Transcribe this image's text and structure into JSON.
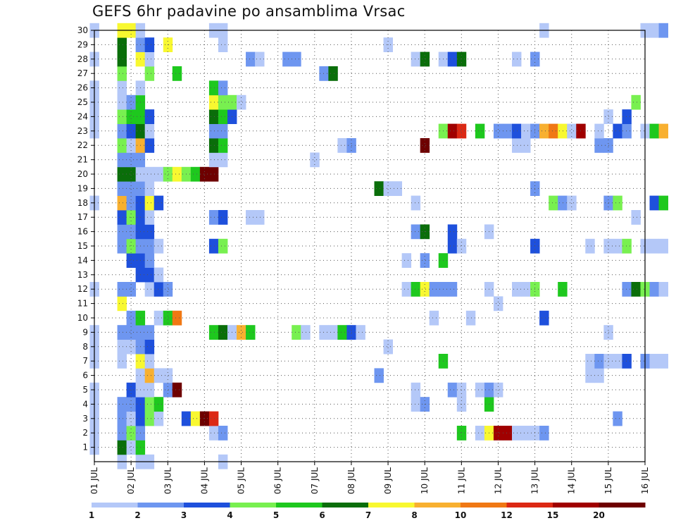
{
  "title": "GEFS 6hr padavine po ansamblima Vrsac",
  "chart_data": {
    "type": "heatmap",
    "title": "GEFS 6hr padavine po ansamblima Vrsac",
    "x_axis": {
      "unit": "day of JUL (6-hourly steps)",
      "range": [
        1,
        16
      ],
      "tick_labels": [
        "01 JUL",
        "02 JUL",
        "03 JUL",
        "04 JUL",
        "05 JUL",
        "06 JUL",
        "07 JUL",
        "08 JUL",
        "09 JUL",
        "10 JUL",
        "11 JUL",
        "12 JUL",
        "13 JUL",
        "14 JUL",
        "15 JUL",
        "16 JUL"
      ]
    },
    "y_axis": {
      "unit": "ensemble member",
      "range": [
        0,
        30
      ],
      "tick_labels": [
        "1",
        "2",
        "3",
        "4",
        "5",
        "6",
        "7",
        "8",
        "9",
        "10",
        "11",
        "12",
        "13",
        "14",
        "15",
        "16",
        "17",
        "18",
        "19",
        "20",
        "21",
        "22",
        "23",
        "24",
        "25",
        "26",
        "27",
        "28",
        "29",
        "30"
      ]
    },
    "grid": "dotted",
    "colorbar": {
      "labels": [
        "1",
        "2",
        "3",
        "4",
        "5",
        "6",
        "7",
        "8",
        "10",
        "12",
        "15",
        "20"
      ],
      "colors": [
        "#b4c8f8",
        "#6e96f0",
        "#1e50dc",
        "#78f050",
        "#1ec81e",
        "#0a6e0a",
        "#f8f830",
        "#f8b030",
        "#f07814",
        "#dc2814",
        "#a00000",
        "#6e0000"
      ]
    },
    "cells": [
      [
        1.0,
        1,
        1
      ],
      [
        1.0,
        2,
        1
      ],
      [
        1.0,
        3,
        1
      ],
      [
        1.0,
        4,
        1
      ],
      [
        1.0,
        5,
        1
      ],
      [
        1.0,
        7,
        1
      ],
      [
        1.0,
        8,
        1
      ],
      [
        1.0,
        9,
        1
      ],
      [
        1.0,
        12,
        1
      ],
      [
        1.0,
        18,
        1
      ],
      [
        1.0,
        23,
        1
      ],
      [
        1.0,
        24,
        1
      ],
      [
        1.0,
        25,
        1
      ],
      [
        1.0,
        26,
        1
      ],
      [
        1.0,
        28,
        1
      ],
      [
        1.0,
        30,
        1
      ],
      [
        1.75,
        0,
        1
      ],
      [
        1.75,
        1,
        6
      ],
      [
        1.75,
        2,
        2
      ],
      [
        1.75,
        3,
        2
      ],
      [
        1.75,
        4,
        2
      ],
      [
        1.75,
        7,
        1
      ],
      [
        1.75,
        8,
        1
      ],
      [
        1.75,
        9,
        2
      ],
      [
        1.75,
        11,
        7
      ],
      [
        1.75,
        12,
        2
      ],
      [
        1.75,
        15,
        2
      ],
      [
        1.75,
        16,
        2
      ],
      [
        1.75,
        17,
        3
      ],
      [
        1.75,
        18,
        8
      ],
      [
        1.75,
        19,
        2
      ],
      [
        1.75,
        20,
        6
      ],
      [
        1.75,
        21,
        2
      ],
      [
        1.75,
        22,
        4
      ],
      [
        1.75,
        23,
        2
      ],
      [
        1.75,
        24,
        4
      ],
      [
        1.75,
        25,
        1
      ],
      [
        1.75,
        26,
        1
      ],
      [
        1.75,
        27,
        4
      ],
      [
        1.75,
        28,
        6
      ],
      [
        1.75,
        29,
        6
      ],
      [
        1.75,
        30,
        7
      ],
      [
        2.0,
        1,
        1
      ],
      [
        2.0,
        2,
        4
      ],
      [
        2.0,
        3,
        1
      ],
      [
        2.0,
        4,
        2
      ],
      [
        2.0,
        5,
        3
      ],
      [
        2.0,
        8,
        1
      ],
      [
        2.0,
        9,
        2
      ],
      [
        2.0,
        10,
        2
      ],
      [
        2.0,
        12,
        2
      ],
      [
        2.0,
        14,
        3
      ],
      [
        2.0,
        15,
        4
      ],
      [
        2.0,
        16,
        2
      ],
      [
        2.0,
        17,
        4
      ],
      [
        2.0,
        18,
        2
      ],
      [
        2.0,
        19,
        2
      ],
      [
        2.0,
        20,
        6
      ],
      [
        2.0,
        21,
        2
      ],
      [
        2.0,
        22,
        1
      ],
      [
        2.0,
        23,
        3
      ],
      [
        2.0,
        24,
        5
      ],
      [
        2.0,
        25,
        2
      ],
      [
        2.0,
        30,
        7
      ],
      [
        2.25,
        0,
        1
      ],
      [
        2.25,
        1,
        5
      ],
      [
        2.25,
        2,
        2
      ],
      [
        2.25,
        3,
        3
      ],
      [
        2.25,
        4,
        3
      ],
      [
        2.25,
        5,
        1
      ],
      [
        2.25,
        6,
        1
      ],
      [
        2.25,
        7,
        7
      ],
      [
        2.25,
        8,
        2
      ],
      [
        2.25,
        9,
        2
      ],
      [
        2.25,
        10,
        5
      ],
      [
        2.25,
        13,
        3
      ],
      [
        2.25,
        14,
        3
      ],
      [
        2.25,
        15,
        2
      ],
      [
        2.25,
        16,
        3
      ],
      [
        2.25,
        17,
        3
      ],
      [
        2.25,
        18,
        3
      ],
      [
        2.25,
        19,
        2
      ],
      [
        2.25,
        20,
        1
      ],
      [
        2.25,
        21,
        2
      ],
      [
        2.25,
        22,
        8
      ],
      [
        2.25,
        23,
        6
      ],
      [
        2.25,
        24,
        5
      ],
      [
        2.25,
        25,
        5
      ],
      [
        2.25,
        26,
        1
      ],
      [
        2.25,
        28,
        7
      ],
      [
        2.25,
        29,
        2
      ],
      [
        2.25,
        30,
        1
      ],
      [
        2.5,
        0,
        1
      ],
      [
        2.5,
        3,
        4
      ],
      [
        2.5,
        4,
        4
      ],
      [
        2.5,
        5,
        1
      ],
      [
        2.5,
        6,
        8
      ],
      [
        2.5,
        7,
        1
      ],
      [
        2.5,
        8,
        3
      ],
      [
        2.5,
        9,
        2
      ],
      [
        2.5,
        12,
        1
      ],
      [
        2.5,
        13,
        3
      ],
      [
        2.5,
        14,
        2
      ],
      [
        2.5,
        15,
        2
      ],
      [
        2.5,
        16,
        3
      ],
      [
        2.5,
        17,
        1
      ],
      [
        2.5,
        18,
        7
      ],
      [
        2.5,
        19,
        1
      ],
      [
        2.5,
        20,
        1
      ],
      [
        2.5,
        22,
        3
      ],
      [
        2.5,
        23,
        1
      ],
      [
        2.5,
        24,
        3
      ],
      [
        2.5,
        27,
        4
      ],
      [
        2.5,
        28,
        1
      ],
      [
        2.5,
        29,
        3
      ],
      [
        2.75,
        3,
        1
      ],
      [
        2.75,
        4,
        5
      ],
      [
        2.75,
        6,
        1
      ],
      [
        2.75,
        10,
        1
      ],
      [
        2.75,
        12,
        3
      ],
      [
        2.75,
        13,
        1
      ],
      [
        2.75,
        15,
        1
      ],
      [
        2.75,
        18,
        3
      ],
      [
        2.75,
        20,
        1
      ],
      [
        3.0,
        5,
        2
      ],
      [
        3.0,
        6,
        1
      ],
      [
        3.0,
        10,
        5
      ],
      [
        3.0,
        12,
        2
      ],
      [
        3.0,
        20,
        4
      ],
      [
        3.0,
        29,
        7
      ],
      [
        3.25,
        5,
        12
      ],
      [
        3.25,
        10,
        9
      ],
      [
        3.25,
        20,
        7
      ],
      [
        3.25,
        27,
        5
      ],
      [
        3.5,
        3,
        3
      ],
      [
        3.5,
        20,
        4
      ],
      [
        3.75,
        3,
        7
      ],
      [
        3.75,
        20,
        5
      ],
      [
        4.0,
        3,
        12
      ],
      [
        4.0,
        20,
        12
      ],
      [
        4.25,
        2,
        1
      ],
      [
        4.25,
        3,
        10
      ],
      [
        4.25,
        9,
        5
      ],
      [
        4.25,
        15,
        3
      ],
      [
        4.25,
        17,
        2
      ],
      [
        4.25,
        20,
        12
      ],
      [
        4.25,
        21,
        1
      ],
      [
        4.25,
        22,
        6
      ],
      [
        4.25,
        23,
        2
      ],
      [
        4.25,
        24,
        6
      ],
      [
        4.25,
        25,
        7
      ],
      [
        4.25,
        26,
        5
      ],
      [
        4.25,
        30,
        1
      ],
      [
        4.5,
        0,
        1
      ],
      [
        4.5,
        2,
        2
      ],
      [
        4.5,
        9,
        6
      ],
      [
        4.5,
        15,
        4
      ],
      [
        4.5,
        17,
        3
      ],
      [
        4.5,
        21,
        1
      ],
      [
        4.5,
        22,
        5
      ],
      [
        4.5,
        23,
        2
      ],
      [
        4.5,
        24,
        5
      ],
      [
        4.5,
        25,
        4
      ],
      [
        4.5,
        26,
        2
      ],
      [
        4.5,
        29,
        1
      ],
      [
        4.5,
        30,
        1
      ],
      [
        4.75,
        9,
        1
      ],
      [
        4.75,
        24,
        3
      ],
      [
        4.75,
        25,
        4
      ],
      [
        5.0,
        9,
        8
      ],
      [
        5.0,
        25,
        1
      ],
      [
        5.25,
        9,
        5
      ],
      [
        5.25,
        17,
        1
      ],
      [
        5.25,
        28,
        2
      ],
      [
        5.5,
        17,
        1
      ],
      [
        5.5,
        28,
        1
      ],
      [
        6.25,
        28,
        2
      ],
      [
        6.5,
        9,
        4
      ],
      [
        6.5,
        28,
        2
      ],
      [
        6.75,
        9,
        1
      ],
      [
        7.0,
        21,
        1
      ],
      [
        7.25,
        9,
        1
      ],
      [
        7.25,
        27,
        2
      ],
      [
        7.5,
        9,
        1
      ],
      [
        7.5,
        27,
        6
      ],
      [
        7.75,
        9,
        5
      ],
      [
        7.75,
        22,
        1
      ],
      [
        8.0,
        9,
        3
      ],
      [
        8.0,
        22,
        2
      ],
      [
        8.25,
        9,
        1
      ],
      [
        8.75,
        6,
        2
      ],
      [
        8.75,
        19,
        6
      ],
      [
        9.0,
        8,
        1
      ],
      [
        9.0,
        19,
        1
      ],
      [
        9.0,
        29,
        1
      ],
      [
        9.25,
        19,
        1
      ],
      [
        9.5,
        12,
        1
      ],
      [
        9.5,
        14,
        1
      ],
      [
        9.75,
        4,
        1
      ],
      [
        9.75,
        5,
        1
      ],
      [
        9.75,
        12,
        5
      ],
      [
        9.75,
        16,
        2
      ],
      [
        9.75,
        18,
        1
      ],
      [
        9.75,
        28,
        1
      ],
      [
        10.0,
        4,
        2
      ],
      [
        10.0,
        12,
        7
      ],
      [
        10.0,
        14,
        2
      ],
      [
        10.0,
        16,
        6
      ],
      [
        10.0,
        22,
        12
      ],
      [
        10.0,
        28,
        6
      ],
      [
        10.25,
        10,
        1
      ],
      [
        10.25,
        12,
        2
      ],
      [
        10.5,
        7,
        5
      ],
      [
        10.5,
        12,
        2
      ],
      [
        10.5,
        14,
        5
      ],
      [
        10.5,
        23,
        4
      ],
      [
        10.5,
        28,
        1
      ],
      [
        10.75,
        5,
        2
      ],
      [
        10.75,
        12,
        2
      ],
      [
        10.75,
        15,
        3
      ],
      [
        10.75,
        16,
        3
      ],
      [
        10.75,
        23,
        11
      ],
      [
        10.75,
        28,
        3
      ],
      [
        11.0,
        2,
        5
      ],
      [
        11.0,
        4,
        1
      ],
      [
        11.0,
        5,
        1
      ],
      [
        11.0,
        15,
        1
      ],
      [
        11.0,
        23,
        10
      ],
      [
        11.0,
        28,
        6
      ],
      [
        11.25,
        10,
        1
      ],
      [
        11.5,
        2,
        1
      ],
      [
        11.5,
        5,
        1
      ],
      [
        11.5,
        23,
        5
      ],
      [
        11.75,
        2,
        7
      ],
      [
        11.75,
        4,
        5
      ],
      [
        11.75,
        5,
        2
      ],
      [
        11.75,
        12,
        1
      ],
      [
        11.75,
        16,
        1
      ],
      [
        12.0,
        2,
        11
      ],
      [
        12.0,
        5,
        1
      ],
      [
        12.0,
        11,
        1
      ],
      [
        12.0,
        23,
        2
      ],
      [
        12.25,
        2,
        11
      ],
      [
        12.25,
        23,
        2
      ],
      [
        12.5,
        2,
        1
      ],
      [
        12.5,
        12,
        1
      ],
      [
        12.5,
        22,
        1
      ],
      [
        12.5,
        23,
        3
      ],
      [
        12.5,
        28,
        1
      ],
      [
        12.75,
        2,
        1
      ],
      [
        12.75,
        12,
        1
      ],
      [
        12.75,
        22,
        1
      ],
      [
        12.75,
        23,
        1
      ],
      [
        13.0,
        2,
        1
      ],
      [
        13.0,
        12,
        4
      ],
      [
        13.0,
        15,
        3
      ],
      [
        13.0,
        19,
        2
      ],
      [
        13.0,
        23,
        2
      ],
      [
        13.0,
        28,
        2
      ],
      [
        13.25,
        2,
        2
      ],
      [
        13.25,
        10,
        3
      ],
      [
        13.25,
        23,
        8
      ],
      [
        13.25,
        30,
        1
      ],
      [
        13.5,
        18,
        4
      ],
      [
        13.5,
        23,
        9
      ],
      [
        13.75,
        12,
        5
      ],
      [
        13.75,
        18,
        2
      ],
      [
        13.75,
        23,
        7
      ],
      [
        14.0,
        18,
        1
      ],
      [
        14.0,
        23,
        1
      ],
      [
        14.25,
        23,
        11
      ],
      [
        14.5,
        6,
        1
      ],
      [
        14.5,
        7,
        1
      ],
      [
        14.5,
        15,
        1
      ],
      [
        14.75,
        6,
        1
      ],
      [
        14.75,
        7,
        2
      ],
      [
        14.75,
        22,
        2
      ],
      [
        14.75,
        23,
        1
      ],
      [
        15.0,
        7,
        1
      ],
      [
        15.0,
        9,
        1
      ],
      [
        15.0,
        15,
        1
      ],
      [
        15.0,
        18,
        2
      ],
      [
        15.0,
        22,
        2
      ],
      [
        15.0,
        24,
        1
      ],
      [
        15.25,
        3,
        2
      ],
      [
        15.25,
        7,
        1
      ],
      [
        15.25,
        15,
        1
      ],
      [
        15.25,
        18,
        4
      ],
      [
        15.25,
        23,
        3
      ],
      [
        15.5,
        7,
        3
      ],
      [
        15.5,
        12,
        2
      ],
      [
        15.5,
        15,
        4
      ],
      [
        15.5,
        23,
        2
      ],
      [
        15.5,
        24,
        3
      ],
      [
        15.75,
        12,
        6
      ],
      [
        15.75,
        17,
        1
      ],
      [
        15.75,
        25,
        4
      ],
      [
        16.0,
        7,
        2
      ],
      [
        16.0,
        12,
        4
      ],
      [
        16.0,
        15,
        1
      ],
      [
        16.0,
        23,
        1
      ],
      [
        16.0,
        30,
        1
      ],
      [
        16.25,
        7,
        1
      ],
      [
        16.25,
        12,
        2
      ],
      [
        16.25,
        15,
        1
      ],
      [
        16.25,
        18,
        3
      ],
      [
        16.25,
        23,
        5
      ],
      [
        16.25,
        30,
        1
      ],
      [
        16.5,
        7,
        1
      ],
      [
        16.5,
        12,
        1
      ],
      [
        16.5,
        15,
        1
      ],
      [
        16.5,
        18,
        5
      ],
      [
        16.5,
        23,
        8
      ],
      [
        16.5,
        30,
        2
      ]
    ]
  }
}
